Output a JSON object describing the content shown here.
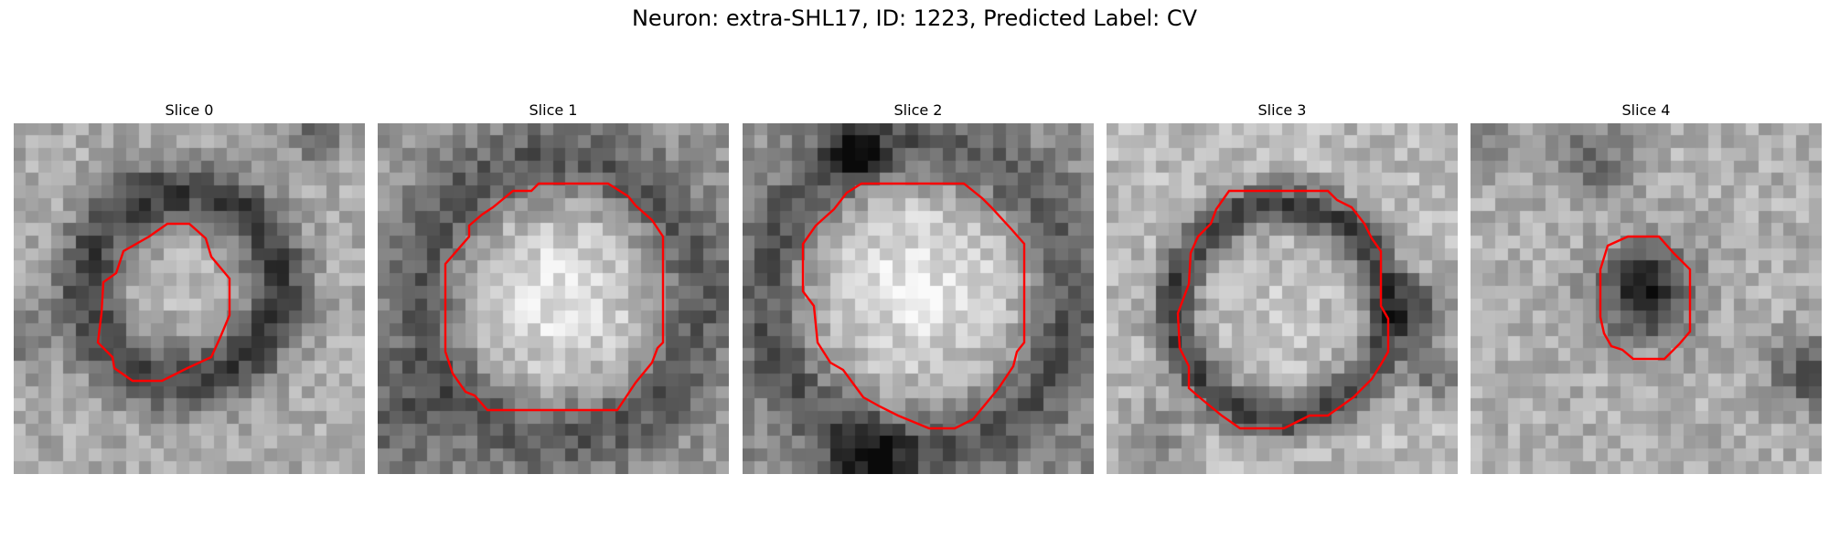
{
  "figure": {
    "title": "Neuron: extra-SHL17, ID: 1223, Predicted Label: CV",
    "contour_color": "#ff0000"
  },
  "panels": [
    {
      "title": "Slice 0",
      "vesicle": "small round vesicle with dark ring, outlined in red"
    },
    {
      "title": "Slice 1",
      "vesicle": "large bright round vesicle, outlined in red"
    },
    {
      "title": "Slice 2",
      "vesicle": "large bright round vesicle, outlined in red"
    },
    {
      "title": "Slice 3",
      "vesicle": "round vesicle with dark membrane ring, outlined in red"
    },
    {
      "title": "Slice 4",
      "vesicle": "small dark vesicle, outlined in red"
    }
  ]
}
